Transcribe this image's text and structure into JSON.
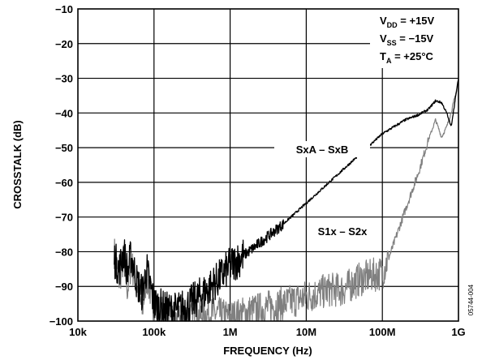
{
  "chart_data": {
    "type": "line",
    "xlabel": "FREQUENCY (Hz)",
    "ylabel": "CROSSTALK (dB)",
    "xscale": "log",
    "xlim": [
      10000,
      1000000000
    ],
    "ylim": [
      -100,
      -10
    ],
    "grid": true,
    "x_ticks": [
      "10k",
      "100k",
      "1M",
      "10M",
      "100M",
      "1G"
    ],
    "y_ticks": [
      "−10",
      "−20",
      "−30",
      "−40",
      "−50",
      "−60",
      "−70",
      "−80",
      "−90",
      "−100"
    ],
    "conditions": [
      {
        "main": "V",
        "sub": "DD",
        "rest": " = +15V"
      },
      {
        "main": "V",
        "sub": "SS",
        "rest": " = −15V"
      },
      {
        "main": "T",
        "sub": "A",
        "rest": " = +25°C"
      }
    ],
    "figure_id": "05744-004",
    "series": [
      {
        "name": "SxA – SxB",
        "color": "#000000",
        "x": [
          30000,
          35000,
          40000,
          45000,
          50000,
          60000,
          70000,
          80000,
          100000,
          150000,
          200000,
          300000,
          500000,
          700000,
          1000000,
          2000000,
          5000000,
          10000000,
          20000000,
          50000000,
          100000000,
          200000000,
          300000000,
          400000000,
          500000000,
          600000000,
          700000000,
          800000000,
          1000000000
        ],
        "y": [
          -82,
          -85,
          -80,
          -86,
          -81,
          -89,
          -92,
          -85,
          -95,
          -97,
          -97,
          -95,
          -91,
          -88,
          -84,
          -79,
          -72,
          -66,
          -60,
          -52,
          -46,
          -42,
          -40.5,
          -39,
          -36.5,
          -37,
          -40,
          -44,
          -30
        ]
      },
      {
        "name": "S1x – S2x",
        "color": "#808080",
        "x": [
          30000,
          35000,
          40000,
          45000,
          50000,
          60000,
          70000,
          80000,
          100000,
          150000,
          200000,
          300000,
          500000,
          700000,
          1000000,
          2000000,
          5000000,
          10000000,
          20000000,
          30000000,
          50000000,
          70000000,
          100000000,
          130000000,
          200000000,
          300000000,
          400000000,
          500000000,
          600000000,
          700000000,
          800000000,
          1000000000
        ],
        "y": [
          -80,
          -88,
          -82,
          -91,
          -83,
          -90,
          -97,
          -87,
          -96,
          -99,
          -100,
          -99,
          -98,
          -98,
          -99,
          -97,
          -95,
          -93,
          -91,
          -91,
          -88,
          -87,
          -86,
          -80,
          -68,
          -57,
          -48,
          -42,
          -47,
          -44,
          -40,
          -31
        ]
      }
    ]
  }
}
